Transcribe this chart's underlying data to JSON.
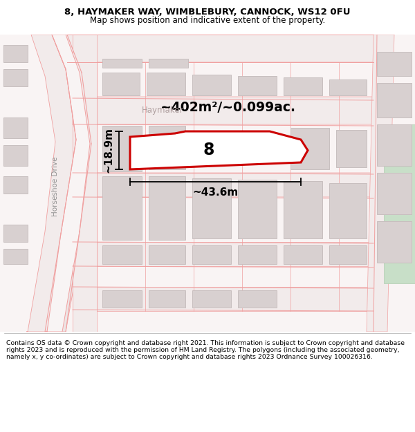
{
  "title_line1": "8, HAYMAKER WAY, WIMBLEBURY, CANNOCK, WS12 0FU",
  "title_line2": "Map shows position and indicative extent of the property.",
  "footer_text": "Contains OS data © Crown copyright and database right 2021. This information is subject to Crown copyright and database rights 2023 and is reproduced with the permission of HM Land Registry. The polygons (including the associated geometry, namely x, y co-ordinates) are subject to Crown copyright and database rights 2023 Ordnance Survey 100026316.",
  "area_label": "~402m²/~0.099ac.",
  "width_label": "~43.6m",
  "height_label": "~18.9m",
  "plot_number": "8",
  "street_label": "Haymaker",
  "road_label": "Horseshoe Drive",
  "map_bg": "#f9f4f4",
  "plot_fill": "#ffffff",
  "plot_edge": "#cc0000",
  "road_line": "#f0a0a0",
  "building_fill": "#d8d0d0",
  "building_edge": "#c8bfbf",
  "green_fill": "#c8dfc8",
  "green_edge": "#b0ccb0",
  "title_color": "#000000",
  "footer_color": "#000000",
  "dim_color": "#000000",
  "street_text_color": "#b0a0a0",
  "road_text_color": "#909090"
}
